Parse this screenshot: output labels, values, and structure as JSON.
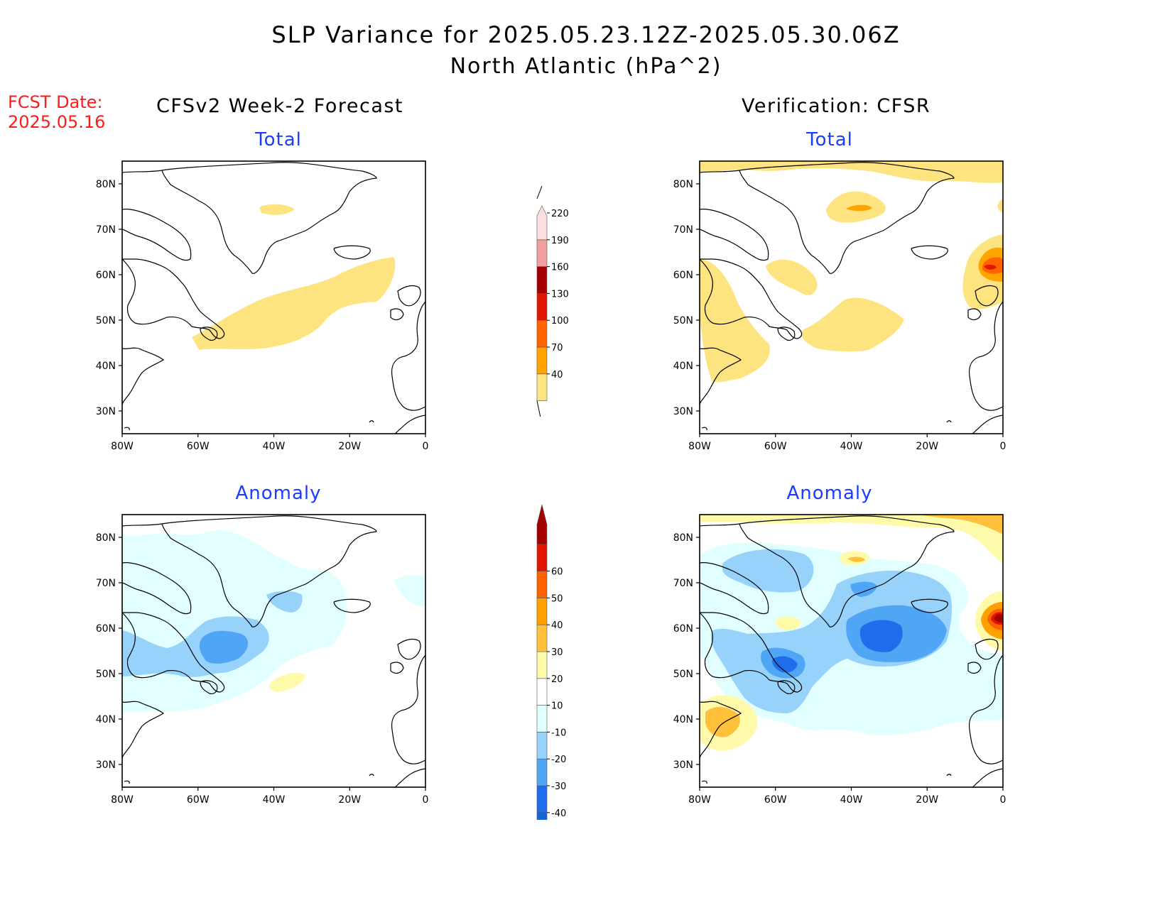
{
  "title": {
    "line1": "SLP Variance for 2025.05.23.12Z-2025.05.30.06Z",
    "line2": "North Atlantic (hPa^2)"
  },
  "fcst_date": {
    "label": "FCST Date:",
    "value": "2025.05.16"
  },
  "columns": {
    "left": "CFSv2 Week-2 Forecast",
    "right": "Verification: CFSR"
  },
  "panels": {
    "forecast_total": {
      "subtitle": "Total"
    },
    "verification_total": {
      "subtitle": "Total"
    },
    "forecast_anomaly": {
      "subtitle": "Anomaly"
    },
    "verification_anomaly": {
      "subtitle": "Anomaly"
    }
  },
  "axes": {
    "lon_ticks": [
      "80W",
      "60W",
      "40W",
      "20W",
      "0"
    ],
    "lat_ticks": [
      "80N",
      "70N",
      "60N",
      "50N",
      "40N",
      "30N"
    ],
    "lon_range": [
      -80,
      0
    ],
    "lat_range": [
      25,
      85
    ]
  },
  "colorbars": {
    "total": {
      "levels": [
        "40",
        "70",
        "100",
        "130",
        "160",
        "190",
        "220"
      ],
      "colors": [
        "#fee480",
        "#ffa400",
        "#ff6400",
        "#e11600",
        "#a50000",
        "#f0a0a0",
        "#fbdede"
      ]
    },
    "anomaly": {
      "levels": [
        "-40",
        "-30",
        "-20",
        "-10",
        "10",
        "20",
        "30",
        "40",
        "50",
        "60"
      ],
      "colors": [
        "#1464d2",
        "#1e6eeb",
        "#50a5f5",
        "#96d2fa",
        "#e1ffff",
        "#ffffff",
        "#fffaaa",
        "#ffc03c",
        "#ffa000",
        "#ff6000",
        "#e11400",
        "#a50000"
      ]
    }
  }
}
